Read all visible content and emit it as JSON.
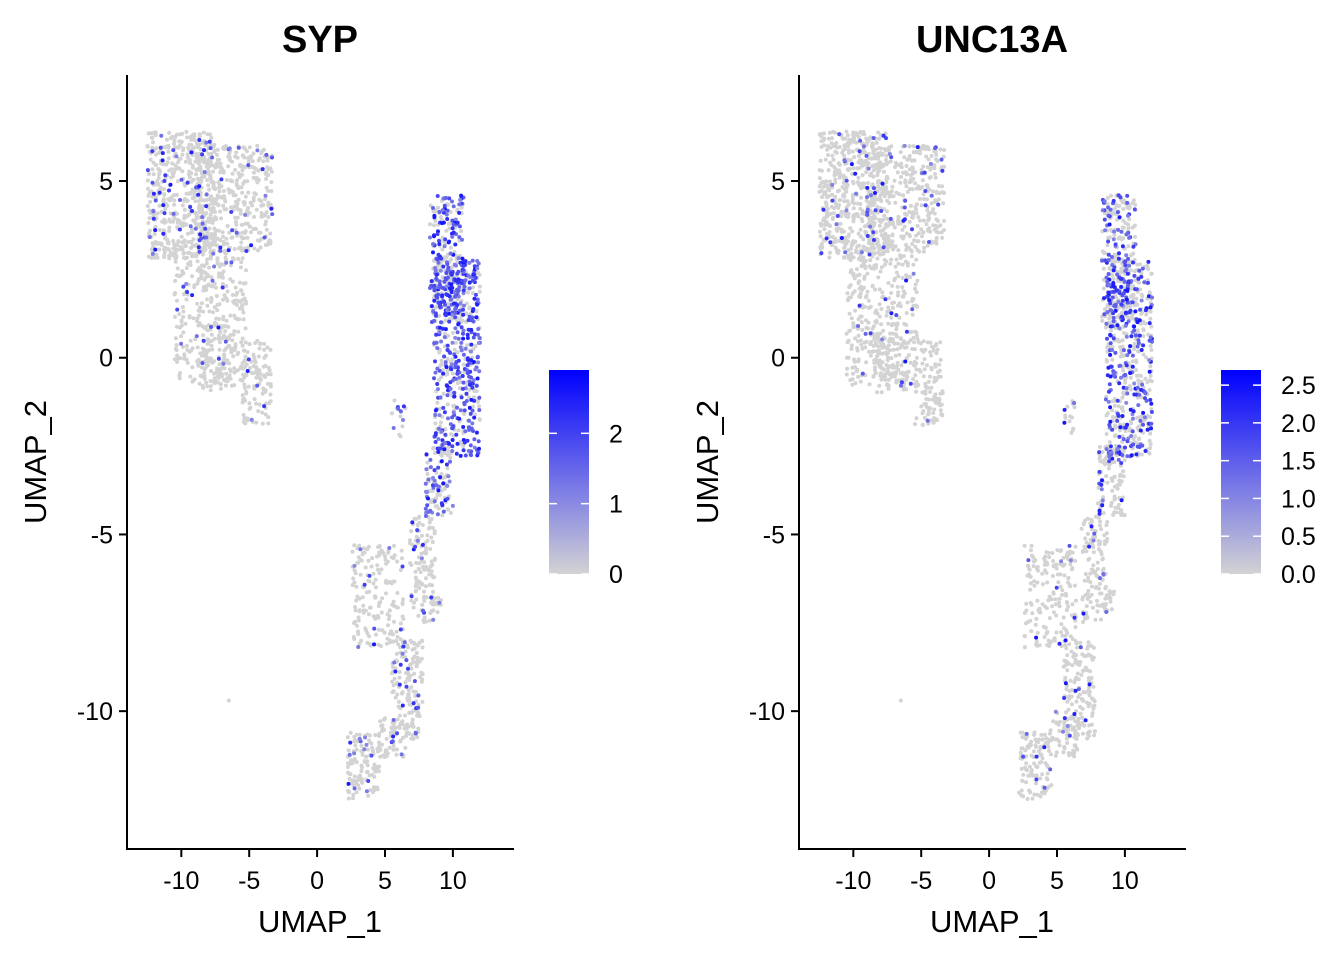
{
  "chart_data": [
    {
      "type": "scatter",
      "title": "SYP",
      "xlabel": "UMAP_1",
      "ylabel": "UMAP_2",
      "xlim": [
        -14,
        14.5
      ],
      "ylim": [
        -13.9,
        8
      ],
      "xticks": [
        -10,
        -5,
        0,
        5,
        10
      ],
      "xtick_labels": [
        "-10",
        "-5",
        "0",
        "5",
        "10"
      ],
      "yticks": [
        5,
        0,
        -5,
        -10
      ],
      "ytick_labels": [
        "5",
        "0",
        "-5",
        "-10"
      ],
      "grid": false,
      "color_scale": {
        "low": "#d3d3d3",
        "high": "#0000ff",
        "min": 0,
        "max": 2.9
      },
      "legend_ticks": [
        0,
        1,
        2
      ],
      "legend_tick_labels": [
        "0",
        "1",
        "2"
      ],
      "legend_position": "right",
      "expression_strength": 1.0
    },
    {
      "type": "scatter",
      "title": "UNC13A",
      "xlabel": "UMAP_1",
      "ylabel": "UMAP_2",
      "xlim": [
        -14,
        14.5
      ],
      "ylim": [
        -13.9,
        8
      ],
      "xticks": [
        -10,
        -5,
        0,
        5,
        10
      ],
      "xtick_labels": [
        "-10",
        "-5",
        "0",
        "5",
        "10"
      ],
      "yticks": [
        5,
        0,
        -5,
        -10
      ],
      "ytick_labels": [
        "5",
        "0",
        "-5",
        "-10"
      ],
      "grid": false,
      "color_scale": {
        "low": "#d3d3d3",
        "high": "#0000ff",
        "min": 0,
        "max": 2.7
      },
      "legend_ticks": [
        0,
        0.5,
        1,
        1.5,
        2,
        2.5
      ],
      "legend_tick_labels": [
        "0.0",
        "0.5",
        "1.0",
        "1.5",
        "2.0",
        "2.5"
      ],
      "legend_position": "right",
      "expression_strength": 0.65
    }
  ]
}
